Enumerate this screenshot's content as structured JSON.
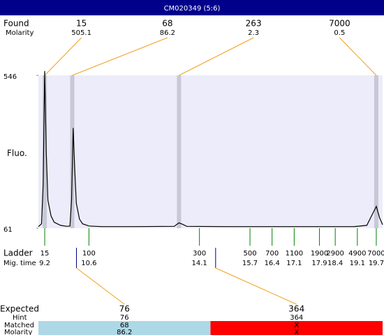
{
  "title_bar": "CM020349 (5:6)",
  "chart_data": {
    "type": "line",
    "y_label": "Fluo.",
    "x": [
      9.0,
      9.1,
      9.15,
      9.2,
      9.25,
      9.3,
      9.4,
      9.5,
      9.7,
      9.9,
      10.0,
      10.05,
      10.1,
      10.15,
      10.2,
      10.3,
      10.4,
      10.6,
      11.0,
      12.0,
      13.3,
      13.45,
      13.55,
      13.7,
      15.0,
      17.0,
      19.0,
      19.4,
      19.6,
      19.7,
      19.8,
      19.9
    ],
    "values": [
      66,
      75,
      200,
      560,
      300,
      150,
      100,
      80,
      70,
      67,
      68,
      150,
      379,
      250,
      140,
      90,
      75,
      68,
      66,
      66,
      67,
      78,
      74,
      67,
      66,
      66,
      66,
      70,
      110,
      130,
      95,
      72
    ],
    "color": "#000000",
    "background": "#ececfa",
    "xlim": [
      9.0,
      19.9
    ],
    "ylim": [
      61,
      546
    ],
    "yticks": [
      61,
      546
    ]
  },
  "found": {
    "label": "Found",
    "molarity_label": "Molarity",
    "peaks": [
      {
        "size": 15,
        "molarity": 505.1
      },
      {
        "size": 68,
        "molarity": 86.2
      },
      {
        "size": 263,
        "molarity": 2.3
      },
      {
        "size": 7000,
        "molarity": 0.5
      }
    ]
  },
  "ladder": {
    "label": "Ladder",
    "time_label": "Mig. time",
    "sizes": [
      15,
      100,
      300,
      500,
      700,
      1100,
      1900,
      2900,
      4900,
      7000
    ],
    "times": [
      9.2,
      10.6,
      14.1,
      15.7,
      16.4,
      17.1,
      17.9,
      18.4,
      19.1,
      19.7
    ]
  },
  "expected": {
    "label": "Expected",
    "hint_label": "Hint",
    "matched_label": "Matched",
    "molarity_label": "Molarity",
    "columns": [
      {
        "size": 76,
        "hint": 76,
        "matched": 68,
        "molarity": 86.2,
        "color": "#add8e6"
      },
      {
        "size": 364,
        "hint": 364,
        "matched": "X",
        "molarity": "X",
        "color": "#ff0000"
      }
    ]
  }
}
